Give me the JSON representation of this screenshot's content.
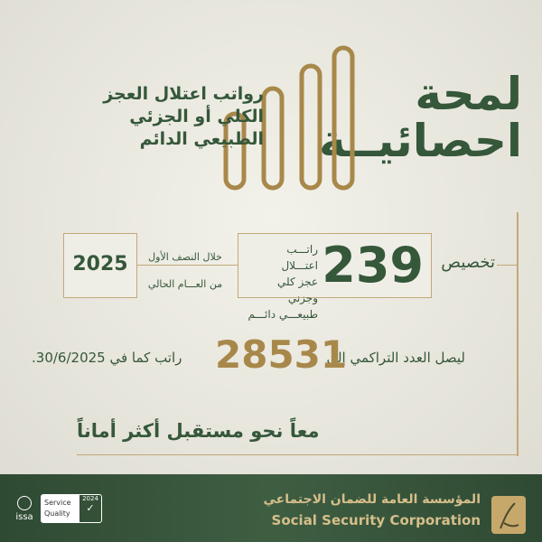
{
  "title": {
    "line1": "لمحة",
    "line2": "احصائيــة"
  },
  "subtitle": [
    "رواتب اعتلال العجز",
    "الكلي أو الجزئي",
    "الطبيعي الدائم"
  ],
  "allocation": {
    "label": "تخصيص",
    "count": "239",
    "desc": [
      "راتـــب اعتـــلال",
      "عجز كلي وجزني",
      "طبيعـــي دائـــم"
    ],
    "period": [
      "خلال النصف الأول",
      "من العـــام الحالي"
    ],
    "year": "2025"
  },
  "cumulative": {
    "prefix": "ليصل العدد التراكمي إلى",
    "value": "28531",
    "suffix": "راتب كما في 30/6/2025."
  },
  "slogan": "معاً نحو مستقبل أكثر أماناً",
  "footer": {
    "org_ar": "المؤسسة العامة للضمان الاجتماعي",
    "org_en": "Social Security Corporation",
    "badge_line1": "Service",
    "badge_line2": "Quality",
    "badge_year": "2024",
    "issa": "issa"
  },
  "colors": {
    "green": "#35573a",
    "gold": "#a8884a",
    "footer": "#3a5a3e"
  }
}
